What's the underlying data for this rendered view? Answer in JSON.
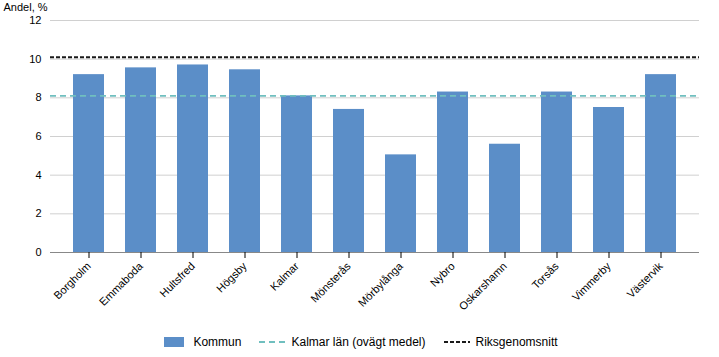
{
  "chart_data": {
    "type": "bar",
    "categories": [
      "Borgholm",
      "Emmaboda",
      "Hultsfred",
      "Högsby",
      "Kalmar",
      "Mönsterås",
      "Mörbylånga",
      "Nybro",
      "Oskarshamn",
      "Torsås",
      "Vimmerby",
      "Västervik"
    ],
    "series": [
      {
        "name": "Kommun",
        "type": "bar",
        "color": "#5B8EC8",
        "values": [
          9.2,
          9.55,
          9.7,
          9.45,
          8.1,
          7.4,
          5.05,
          8.3,
          5.6,
          8.3,
          7.5,
          9.2
        ]
      },
      {
        "name": "Kalmar län (ovägt medel)",
        "type": "hline",
        "color": "#70BFBF",
        "line_style": "dashed",
        "value": 8.1
      },
      {
        "name": "Riksgenomsnitt",
        "type": "hline",
        "color": "#1a1a1a",
        "line_style": "densely-dashed",
        "value": 10.1
      }
    ],
    "ylabel": "Andel, %",
    "ylim": [
      0,
      12
    ],
    "yticks": [
      0,
      2,
      4,
      6,
      8,
      10,
      12
    ],
    "grid": true,
    "legend": "bottom"
  }
}
